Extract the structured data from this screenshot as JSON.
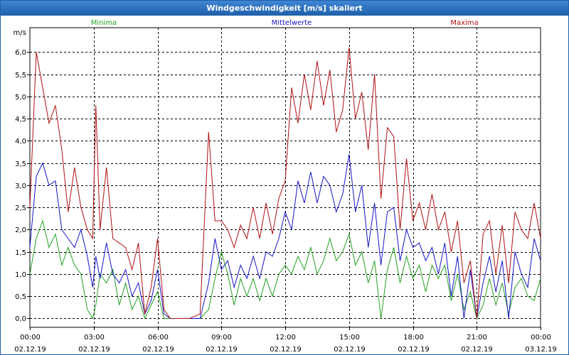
{
  "window": {
    "title": "Windgeschwindigkeit [m/s] skaliert"
  },
  "chart_data": {
    "type": "line",
    "title": "Windgeschwindigkeit [m/s] skaliert",
    "ylabel": "m/s",
    "ylim": [
      -0.2,
      6.55
    ],
    "xlim": [
      0,
      24
    ],
    "yticks": [
      "0,0",
      "0,5",
      "1,0",
      "1,5",
      "2,0",
      "2,5",
      "3,0",
      "3,5",
      "4,0",
      "4,5",
      "5,0",
      "5,5",
      "6,0"
    ],
    "yvalues": [
      0,
      0.5,
      1,
      1.5,
      2,
      2.5,
      3,
      3.5,
      4,
      4.5,
      5,
      5.5,
      6
    ],
    "xticks": [
      {
        "time": "00:00",
        "date": "02.12.19",
        "h": 0
      },
      {
        "time": "03:00",
        "date": "02.12.19",
        "h": 3
      },
      {
        "time": "06:00",
        "date": "02.12.19",
        "h": 6
      },
      {
        "time": "09:00",
        "date": "02.12.19",
        "h": 9
      },
      {
        "time": "12:00",
        "date": "02.12.19",
        "h": 12
      },
      {
        "time": "15:00",
        "date": "02.12.19",
        "h": 15
      },
      {
        "time": "18:00",
        "date": "02.12.19",
        "h": 18
      },
      {
        "time": "21:00",
        "date": "02.12.19",
        "h": 21
      },
      {
        "time": "00:00",
        "date": "03.12.19",
        "h": 24
      }
    ],
    "grid": true,
    "series": [
      {
        "name": "Minima",
        "color": "#22a022",
        "legend": "top-left",
        "x": [
          0,
          0.3,
          0.6,
          0.9,
          1.2,
          1.5,
          1.8,
          2.1,
          2.4,
          2.7,
          2.95,
          3.1,
          3.3,
          3.6,
          3.9,
          4.2,
          4.5,
          4.8,
          5.1,
          5.4,
          5.7,
          6.0,
          6.3,
          6.6,
          7.0,
          7.5,
          8.0,
          8.4,
          8.7,
          9.0,
          9.3,
          9.6,
          9.9,
          10.2,
          10.5,
          10.8,
          11.1,
          11.4,
          11.7,
          12.0,
          12.3,
          12.6,
          12.9,
          13.2,
          13.5,
          13.8,
          14.1,
          14.4,
          14.7,
          15.0,
          15.3,
          15.6,
          15.9,
          16.2,
          16.5,
          16.8,
          17.1,
          17.4,
          17.7,
          18.0,
          18.3,
          18.6,
          18.9,
          19.2,
          19.5,
          19.8,
          20.1,
          20.4,
          20.7,
          21.0,
          21.3,
          21.6,
          21.9,
          22.2,
          22.5,
          22.8,
          23.1,
          23.4,
          23.7,
          24.0
        ],
        "y": [
          1.0,
          1.8,
          2.2,
          1.6,
          1.9,
          1.2,
          1.6,
          1.2,
          1.0,
          0.2,
          0.0,
          0.3,
          1.0,
          0.8,
          1.1,
          0.3,
          0.8,
          0.2,
          0.5,
          0.0,
          0.3,
          0.6,
          0.0,
          0.0,
          0.0,
          0.0,
          0.0,
          0.2,
          0.9,
          1.5,
          1.0,
          0.3,
          0.9,
          0.5,
          0.9,
          0.4,
          0.9,
          0.5,
          1.0,
          1.2,
          1.0,
          1.4,
          1.1,
          1.6,
          1.0,
          1.3,
          1.8,
          1.3,
          1.5,
          1.9,
          1.2,
          1.5,
          0.8,
          1.3,
          0.0,
          1.1,
          1.6,
          0.8,
          1.4,
          0.9,
          1.2,
          0.6,
          1.2,
          0.9,
          1.2,
          0.4,
          1.0,
          0.2,
          0.6,
          0.0,
          0.3,
          0.9,
          0.3,
          0.8,
          0.1,
          0.7,
          0.9,
          0.5,
          0.4,
          0.9
        ]
      },
      {
        "name": "Mittelwerte",
        "color": "#1414c8",
        "legend": "top-center",
        "x": [
          0,
          0.3,
          0.6,
          0.9,
          1.2,
          1.5,
          1.8,
          2.1,
          2.4,
          2.7,
          2.95,
          3.1,
          3.3,
          3.6,
          3.9,
          4.2,
          4.5,
          4.8,
          5.1,
          5.4,
          5.7,
          6.0,
          6.3,
          6.6,
          7.0,
          7.5,
          8.0,
          8.4,
          8.7,
          9.0,
          9.3,
          9.6,
          9.9,
          10.2,
          10.5,
          10.8,
          11.1,
          11.4,
          11.7,
          12.0,
          12.3,
          12.6,
          12.9,
          13.2,
          13.5,
          13.8,
          14.1,
          14.4,
          14.7,
          15.0,
          15.3,
          15.6,
          15.9,
          16.2,
          16.5,
          16.8,
          17.1,
          17.4,
          17.7,
          18.0,
          18.3,
          18.6,
          18.9,
          19.2,
          19.5,
          19.8,
          20.1,
          20.4,
          20.7,
          21.0,
          21.3,
          21.6,
          21.9,
          22.2,
          22.5,
          22.8,
          23.1,
          23.4,
          23.7,
          24.0
        ],
        "y": [
          1.6,
          3.2,
          3.5,
          3.0,
          3.1,
          2.0,
          1.8,
          1.6,
          2.0,
          1.4,
          0.7,
          1.4,
          0.9,
          1.7,
          1.0,
          0.8,
          1.1,
          0.5,
          0.8,
          0.1,
          0.4,
          1.1,
          0.1,
          0.0,
          0.0,
          0.0,
          0.0,
          0.8,
          1.8,
          1.1,
          1.3,
          0.7,
          1.2,
          0.9,
          1.4,
          0.9,
          1.5,
          1.4,
          1.8,
          2.4,
          2.0,
          3.1,
          2.6,
          3.3,
          2.6,
          3.2,
          3.0,
          2.4,
          2.8,
          3.7,
          2.4,
          3.0,
          1.6,
          2.6,
          1.2,
          2.4,
          2.5,
          1.3,
          2.0,
          1.6,
          1.7,
          1.3,
          1.6,
          1.0,
          1.7,
          0.5,
          1.4,
          0.0,
          1.1,
          0.0,
          0.8,
          1.4,
          0.6,
          1.3,
          0.0,
          1.5,
          1.0,
          0.7,
          1.8,
          1.3
        ]
      },
      {
        "name": "Maxima",
        "color": "#b01010",
        "legend": "top-right",
        "x": [
          0,
          0.3,
          0.6,
          0.9,
          1.2,
          1.5,
          1.8,
          2.1,
          2.4,
          2.7,
          2.95,
          3.1,
          3.3,
          3.6,
          3.9,
          4.2,
          4.5,
          4.8,
          5.1,
          5.4,
          5.7,
          6.0,
          6.3,
          6.6,
          7.0,
          7.5,
          8.0,
          8.4,
          8.7,
          9.0,
          9.3,
          9.6,
          9.9,
          10.2,
          10.5,
          10.8,
          11.1,
          11.4,
          11.7,
          12.0,
          12.3,
          12.6,
          12.9,
          13.2,
          13.5,
          13.8,
          14.1,
          14.4,
          14.7,
          15.0,
          15.3,
          15.6,
          15.9,
          16.2,
          16.5,
          16.8,
          17.1,
          17.4,
          17.7,
          18.0,
          18.3,
          18.6,
          18.9,
          19.2,
          19.5,
          19.8,
          20.1,
          20.4,
          20.7,
          21.0,
          21.3,
          21.6,
          21.9,
          22.2,
          22.5,
          22.8,
          23.1,
          23.4,
          23.7,
          24.0
        ],
        "y": [
          2.5,
          6.0,
          5.2,
          4.4,
          4.8,
          3.8,
          2.4,
          3.4,
          2.5,
          2.0,
          1.8,
          4.8,
          2.0,
          3.4,
          1.8,
          1.7,
          1.6,
          1.1,
          1.7,
          0.1,
          0.7,
          1.8,
          0.2,
          0.0,
          0.0,
          0.0,
          0.1,
          4.2,
          2.2,
          2.2,
          2.0,
          1.6,
          2.1,
          1.8,
          2.5,
          1.8,
          2.6,
          1.9,
          2.7,
          3.1,
          5.2,
          4.4,
          5.5,
          4.7,
          5.8,
          4.8,
          5.6,
          4.2,
          4.7,
          6.1,
          4.5,
          5.1,
          3.8,
          5.5,
          2.7,
          4.3,
          4.1,
          2.0,
          3.6,
          2.2,
          2.6,
          2.0,
          2.8,
          2.0,
          2.4,
          1.5,
          2.2,
          0.8,
          1.3,
          0.0,
          1.9,
          2.2,
          1.0,
          2.1,
          0.8,
          2.4,
          2.0,
          1.8,
          2.6,
          1.8
        ]
      }
    ]
  }
}
